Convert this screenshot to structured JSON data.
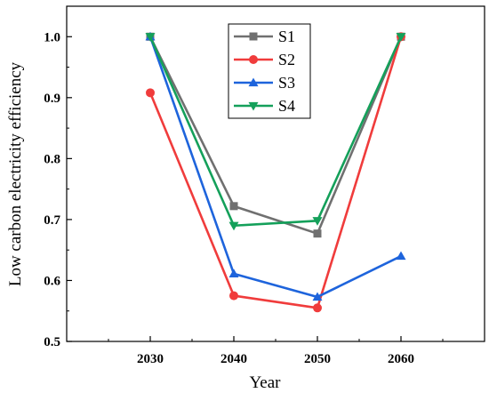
{
  "chart_data": {
    "type": "line",
    "xlabel": "Year",
    "ylabel": "Low carbon electricity efficiency",
    "categories": [
      "2030",
      "2040",
      "2050",
      "2060"
    ],
    "xlim": [
      2020,
      2070
    ],
    "ylim": [
      0.5,
      1.05
    ],
    "yticks": [
      "0.5",
      "0.6",
      "0.7",
      "0.8",
      "0.9",
      "1.0"
    ],
    "grid": false,
    "legend_position": "top-center",
    "series": [
      {
        "name": "S1",
        "color": "#707070",
        "marker": "square",
        "values": [
          1.0,
          0.722,
          0.677,
          1.0
        ]
      },
      {
        "name": "S2",
        "color": "#f03c3c",
        "marker": "circle",
        "values": [
          0.908,
          0.575,
          0.555,
          1.0
        ]
      },
      {
        "name": "S3",
        "color": "#1e64dc",
        "marker": "triangle-up",
        "values": [
          1.0,
          0.611,
          0.573,
          0.64
        ]
      },
      {
        "name": "S4",
        "color": "#14a05a",
        "marker": "triangle-down",
        "values": [
          1.0,
          0.69,
          0.698,
          1.0
        ]
      }
    ]
  }
}
